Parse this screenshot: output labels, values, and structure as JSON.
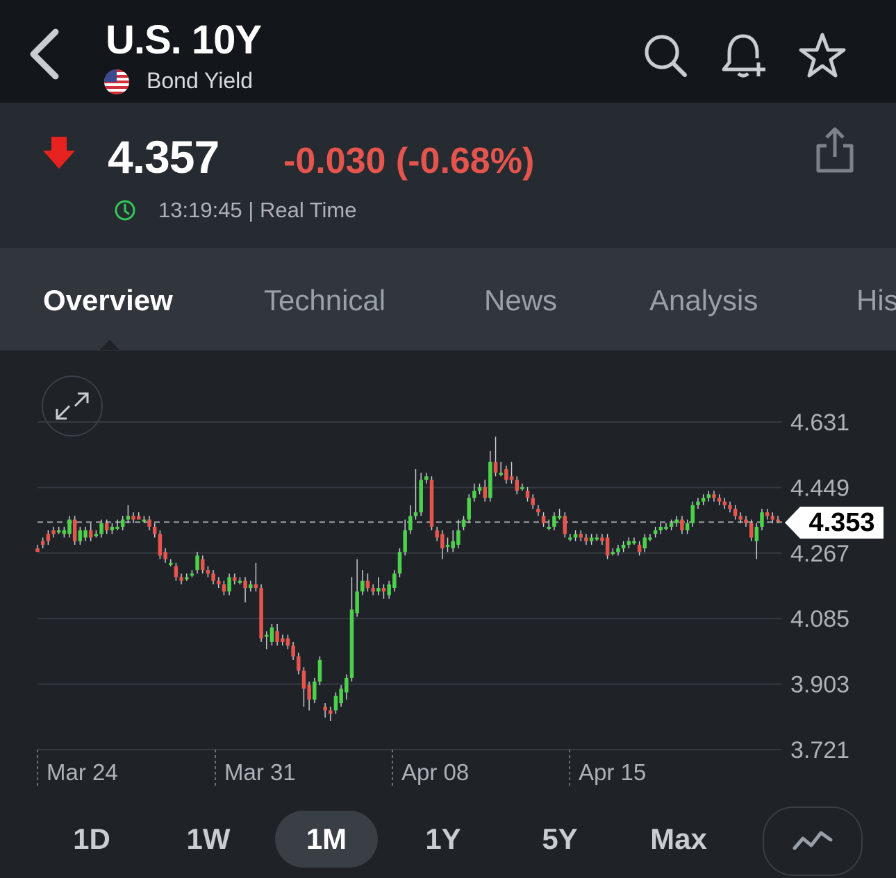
{
  "header": {
    "title": "U.S. 10Y",
    "subtitle": "Bond Yield",
    "icons": [
      "chevron-left-icon",
      "us-flag-icon",
      "search-icon",
      "add-alert-bell-icon",
      "star-icon"
    ]
  },
  "quote": {
    "price": "4.357",
    "change": "-0.030 (-0.68%)",
    "time": "13:19:45 | Real Time",
    "direction_icon": "down-arrow-icon",
    "colors": {
      "down": "#e5554d",
      "up": "#4cd14a",
      "clock": "#34c759"
    }
  },
  "tabs": [
    "Overview",
    "Technical",
    "News",
    "Analysis",
    "His"
  ],
  "active_tab": "Overview",
  "ranges": [
    "1D",
    "1W",
    "1M",
    "1Y",
    "5Y",
    "Max"
  ],
  "active_range": "1M",
  "current_value": "4.353",
  "chart_data": {
    "type": "candlestick",
    "y_ticks": [
      "4.631",
      "4.449",
      "4.267",
      "4.085",
      "3.903",
      "3.721"
    ],
    "ylim": [
      3.721,
      4.631
    ],
    "x_ticks": [
      "Mar 24",
      "Mar 31",
      "Apr 08",
      "Apr 15"
    ],
    "current": 4.353,
    "colors": {
      "up": "#4cd14a",
      "down": "#e5554d"
    },
    "candles": [
      [
        4.28,
        4.27,
        4.29,
        4.27
      ],
      [
        4.3,
        4.29,
        4.31,
        4.28
      ],
      [
        4.32,
        4.3,
        4.33,
        4.29
      ],
      [
        4.33,
        4.32,
        4.34,
        4.31
      ],
      [
        4.33,
        4.33,
        4.34,
        4.32
      ],
      [
        4.32,
        4.33,
        4.34,
        4.31
      ],
      [
        4.32,
        4.36,
        4.37,
        4.31
      ],
      [
        4.36,
        4.3,
        4.37,
        4.29
      ],
      [
        4.3,
        4.33,
        4.34,
        4.29
      ],
      [
        4.31,
        4.33,
        4.34,
        4.3
      ],
      [
        4.33,
        4.31,
        4.35,
        4.3
      ],
      [
        4.32,
        4.32,
        4.33,
        4.31
      ],
      [
        4.32,
        4.35,
        4.36,
        4.31
      ],
      [
        4.35,
        4.33,
        4.36,
        4.32
      ],
      [
        4.33,
        4.34,
        4.35,
        4.32
      ],
      [
        4.34,
        4.34,
        4.36,
        4.33
      ],
      [
        4.34,
        4.36,
        4.37,
        4.33
      ],
      [
        4.36,
        4.37,
        4.4,
        4.35
      ],
      [
        4.37,
        4.36,
        4.38,
        4.35
      ],
      [
        4.37,
        4.36,
        4.38,
        4.36
      ],
      [
        4.36,
        4.36,
        4.37,
        4.35
      ],
      [
        4.36,
        4.34,
        4.37,
        4.33
      ],
      [
        4.34,
        4.32,
        4.35,
        4.31
      ],
      [
        4.32,
        4.26,
        4.33,
        4.25
      ],
      [
        4.27,
        4.25,
        4.28,
        4.24
      ],
      [
        4.24,
        4.24,
        4.25,
        4.23
      ],
      [
        4.23,
        4.2,
        4.24,
        4.19
      ],
      [
        4.2,
        4.19,
        4.21,
        4.18
      ],
      [
        4.2,
        4.2,
        4.21,
        4.19
      ],
      [
        4.21,
        4.21,
        4.22,
        4.2
      ],
      [
        4.22,
        4.26,
        4.27,
        4.21
      ],
      [
        4.25,
        4.22,
        4.26,
        4.21
      ],
      [
        4.22,
        4.21,
        4.23,
        4.2
      ],
      [
        4.21,
        4.19,
        4.22,
        4.18
      ],
      [
        4.19,
        4.18,
        4.2,
        4.17
      ],
      [
        4.18,
        4.16,
        4.19,
        4.15
      ],
      [
        4.16,
        4.2,
        4.21,
        4.15
      ],
      [
        4.2,
        4.19,
        4.21,
        4.18
      ],
      [
        4.19,
        4.19,
        4.2,
        4.18
      ],
      [
        4.19,
        4.17,
        4.2,
        4.13
      ],
      [
        4.17,
        4.18,
        4.19,
        4.16
      ],
      [
        4.18,
        4.17,
        4.24,
        4.16
      ],
      [
        4.17,
        4.03,
        4.18,
        4.02
      ],
      [
        4.04,
        4.04,
        4.05,
        4.0
      ],
      [
        4.02,
        4.06,
        4.07,
        4.01
      ],
      [
        4.05,
        4.02,
        4.07,
        4.01
      ],
      [
        4.03,
        4.02,
        4.04,
        4.01
      ],
      [
        4.03,
        4.01,
        4.04,
        4.0
      ],
      [
        4.01,
        3.98,
        4.02,
        3.97
      ],
      [
        3.98,
        3.94,
        3.99,
        3.93
      ],
      [
        3.94,
        3.89,
        3.95,
        3.84
      ],
      [
        3.9,
        3.86,
        3.91,
        3.83
      ],
      [
        3.86,
        3.91,
        3.92,
        3.85
      ],
      [
        3.91,
        3.97,
        3.98,
        3.9
      ],
      [
        3.84,
        3.83,
        3.85,
        3.81
      ],
      [
        3.83,
        3.82,
        3.84,
        3.8
      ],
      [
        3.83,
        3.87,
        3.88,
        3.82
      ],
      [
        3.85,
        3.89,
        3.9,
        3.84
      ],
      [
        3.88,
        3.92,
        3.93,
        3.86
      ],
      [
        3.92,
        4.11,
        4.2,
        3.91
      ],
      [
        4.1,
        4.16,
        4.25,
        4.09
      ],
      [
        4.16,
        4.19,
        4.22,
        4.15
      ],
      [
        4.19,
        4.17,
        4.21,
        4.16
      ],
      [
        4.17,
        4.16,
        4.18,
        4.15
      ],
      [
        4.16,
        4.17,
        4.2,
        4.15
      ],
      [
        4.17,
        4.16,
        4.18,
        4.14
      ],
      [
        4.15,
        4.18,
        4.19,
        4.14
      ],
      [
        4.17,
        4.21,
        4.22,
        4.16
      ],
      [
        4.21,
        4.27,
        4.28,
        4.2
      ],
      [
        4.27,
        4.33,
        4.36,
        4.26
      ],
      [
        4.33,
        4.37,
        4.4,
        4.32
      ],
      [
        4.37,
        4.38,
        4.5,
        4.36
      ],
      [
        4.38,
        4.47,
        4.49,
        4.37
      ],
      [
        4.47,
        4.48,
        4.49,
        4.46
      ],
      [
        4.47,
        4.34,
        4.48,
        4.33
      ],
      [
        4.33,
        4.31,
        4.34,
        4.3
      ],
      [
        4.32,
        4.28,
        4.33,
        4.25
      ],
      [
        4.29,
        4.29,
        4.31,
        4.27
      ],
      [
        4.28,
        4.3,
        4.33,
        4.27
      ],
      [
        4.29,
        4.33,
        4.36,
        4.28
      ],
      [
        4.34,
        4.36,
        4.37,
        4.33
      ],
      [
        4.36,
        4.42,
        4.43,
        4.35
      ],
      [
        4.42,
        4.44,
        4.46,
        4.41
      ],
      [
        4.44,
        4.45,
        4.46,
        4.43
      ],
      [
        4.45,
        4.42,
        4.47,
        4.41
      ],
      [
        4.42,
        4.52,
        4.55,
        4.41
      ],
      [
        4.52,
        4.49,
        4.59,
        4.48
      ],
      [
        4.49,
        4.49,
        4.52,
        4.48
      ],
      [
        4.5,
        4.47,
        4.51,
        4.46
      ],
      [
        4.48,
        4.47,
        4.52,
        4.46
      ],
      [
        4.47,
        4.44,
        4.48,
        4.43
      ],
      [
        4.45,
        4.45,
        4.46,
        4.44
      ],
      [
        4.44,
        4.42,
        4.45,
        4.41
      ],
      [
        4.42,
        4.4,
        4.43,
        4.39
      ],
      [
        4.39,
        4.38,
        4.4,
        4.37
      ],
      [
        4.37,
        4.35,
        4.38,
        4.34
      ],
      [
        4.34,
        4.34,
        4.36,
        4.33
      ],
      [
        4.34,
        4.37,
        4.38,
        4.33
      ],
      [
        4.37,
        4.37,
        4.39,
        4.36
      ],
      [
        4.37,
        4.32,
        4.38,
        4.31
      ],
      [
        4.31,
        4.31,
        4.32,
        4.3
      ],
      [
        4.31,
        4.32,
        4.33,
        4.3
      ],
      [
        4.32,
        4.31,
        4.33,
        4.3
      ],
      [
        4.31,
        4.3,
        4.32,
        4.29
      ],
      [
        4.3,
        4.31,
        4.32,
        4.29
      ],
      [
        4.31,
        4.31,
        4.32,
        4.3
      ],
      [
        4.31,
        4.3,
        4.32,
        4.29
      ],
      [
        4.31,
        4.26,
        4.32,
        4.25
      ],
      [
        4.27,
        4.27,
        4.28,
        4.26
      ],
      [
        4.27,
        4.28,
        4.29,
        4.26
      ],
      [
        4.28,
        4.29,
        4.3,
        4.27
      ],
      [
        4.29,
        4.3,
        4.31,
        4.28
      ],
      [
        4.3,
        4.3,
        4.31,
        4.29
      ],
      [
        4.29,
        4.27,
        4.3,
        4.26
      ],
      [
        4.28,
        4.31,
        4.32,
        4.27
      ],
      [
        4.31,
        4.31,
        4.32,
        4.3
      ],
      [
        4.32,
        4.33,
        4.34,
        4.31
      ],
      [
        4.33,
        4.34,
        4.35,
        4.32
      ],
      [
        4.34,
        4.34,
        4.35,
        4.33
      ],
      [
        4.34,
        4.35,
        4.36,
        4.33
      ],
      [
        4.35,
        4.36,
        4.37,
        4.34
      ],
      [
        4.36,
        4.33,
        4.37,
        4.32
      ],
      [
        4.33,
        4.35,
        4.36,
        4.32
      ],
      [
        4.35,
        4.4,
        4.41,
        4.34
      ],
      [
        4.4,
        4.41,
        4.42,
        4.39
      ],
      [
        4.41,
        4.42,
        4.43,
        4.4
      ],
      [
        4.42,
        4.43,
        4.44,
        4.41
      ],
      [
        4.43,
        4.42,
        4.44,
        4.41
      ],
      [
        4.42,
        4.41,
        4.43,
        4.4
      ],
      [
        4.41,
        4.4,
        4.42,
        4.39
      ],
      [
        4.4,
        4.39,
        4.41,
        4.38
      ],
      [
        4.39,
        4.37,
        4.4,
        4.36
      ],
      [
        4.37,
        4.36,
        4.38,
        4.35
      ],
      [
        4.36,
        4.35,
        4.37,
        4.34
      ],
      [
        4.35,
        4.31,
        4.36,
        4.3
      ],
      [
        4.3,
        4.34,
        4.35,
        4.25
      ],
      [
        4.34,
        4.38,
        4.39,
        4.33
      ],
      [
        4.38,
        4.37,
        4.39,
        4.36
      ],
      [
        4.37,
        4.36,
        4.38,
        4.35
      ],
      [
        4.36,
        4.357,
        4.37,
        4.35
      ]
    ]
  }
}
